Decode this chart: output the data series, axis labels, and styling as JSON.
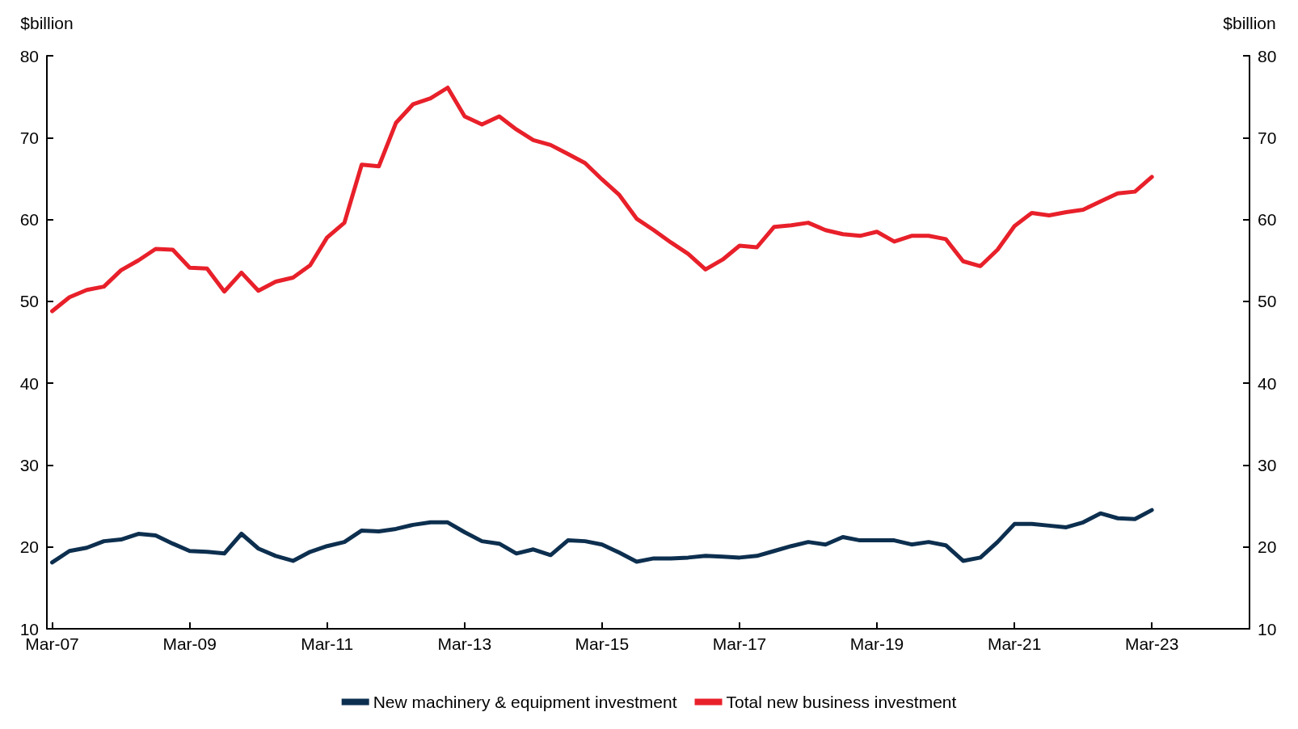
{
  "chart_data": {
    "type": "line",
    "ylabel": "$billion",
    "y2label": "$billion",
    "x": [
      "2007-03",
      "2007-06",
      "2007-09",
      "2007-12",
      "2008-03",
      "2008-06",
      "2008-09",
      "2008-12",
      "2009-03",
      "2009-06",
      "2009-09",
      "2009-12",
      "2010-03",
      "2010-06",
      "2010-09",
      "2010-12",
      "2011-03",
      "2011-06",
      "2011-09",
      "2011-12",
      "2012-03",
      "2012-06",
      "2012-09",
      "2012-12",
      "2013-03",
      "2013-06",
      "2013-09",
      "2013-12",
      "2014-03",
      "2014-06",
      "2014-09",
      "2014-12",
      "2015-03",
      "2015-06",
      "2015-09",
      "2015-12",
      "2016-03",
      "2016-06",
      "2016-09",
      "2016-12",
      "2017-03",
      "2017-06",
      "2017-09",
      "2017-12",
      "2018-03",
      "2018-06",
      "2018-09",
      "2018-12",
      "2019-03",
      "2019-06",
      "2019-09",
      "2019-12",
      "2020-03",
      "2020-06",
      "2020-09",
      "2020-12",
      "2021-03",
      "2021-06",
      "2021-09",
      "2021-12",
      "2022-03",
      "2022-06",
      "2022-09",
      "2022-12",
      "2023-03"
    ],
    "series": [
      {
        "name": "New machinery & equipment investment",
        "color": "#0d2f4f",
        "values": [
          18.1,
          19.5,
          19.9,
          20.7,
          20.9,
          21.6,
          21.4,
          20.4,
          19.5,
          19.4,
          19.2,
          21.6,
          19.8,
          18.9,
          18.3,
          19.4,
          20.1,
          20.6,
          22.0,
          21.9,
          22.2,
          22.7,
          23.0,
          23.0,
          21.8,
          20.7,
          20.4,
          19.2,
          19.7,
          19.0,
          20.8,
          20.7,
          20.3,
          19.3,
          18.2,
          18.6,
          18.6,
          18.7,
          18.9,
          18.8,
          18.7,
          18.9,
          19.5,
          20.1,
          20.6,
          20.3,
          21.2,
          20.8,
          20.8,
          20.8,
          20.3,
          20.6,
          20.2,
          18.3,
          18.7,
          20.6,
          22.8,
          22.8,
          22.6,
          22.4,
          23.0,
          24.1,
          23.5,
          23.4,
          24.5
        ]
      },
      {
        "name": "Total new business investment",
        "color": "#e8202a",
        "values": [
          48.8,
          50.5,
          51.4,
          51.8,
          53.8,
          55.0,
          56.4,
          56.3,
          54.1,
          54.0,
          51.2,
          53.5,
          51.3,
          52.4,
          52.9,
          54.4,
          57.8,
          59.6,
          66.7,
          66.5,
          71.8,
          74.1,
          74.8,
          76.1,
          72.6,
          71.6,
          72.6,
          71.0,
          69.7,
          69.1,
          68.0,
          66.9,
          64.9,
          63.0,
          60.1,
          58.7,
          57.2,
          55.8,
          53.9,
          55.1,
          56.8,
          56.6,
          59.1,
          59.3,
          59.6,
          58.7,
          58.2,
          58.0,
          58.5,
          57.3,
          58.0,
          58.0,
          57.6,
          54.9,
          54.3,
          56.3,
          59.2,
          60.8,
          60.5,
          60.9,
          61.2,
          62.2,
          63.2,
          63.4,
          65.2
        ]
      }
    ],
    "xlim": [
      "2007-02",
      "2024-08"
    ],
    "xticks": [
      {
        "value": "2007-03",
        "label": "Mar-07"
      },
      {
        "value": "2009-03",
        "label": "Mar-09"
      },
      {
        "value": "2011-03",
        "label": "Mar-11"
      },
      {
        "value": "2013-03",
        "label": "Mar-13"
      },
      {
        "value": "2015-03",
        "label": "Mar-15"
      },
      {
        "value": "2017-03",
        "label": "Mar-17"
      },
      {
        "value": "2019-03",
        "label": "Mar-19"
      },
      {
        "value": "2021-03",
        "label": "Mar-21"
      },
      {
        "value": "2023-03",
        "label": "Mar-23"
      }
    ],
    "ylim": [
      10,
      80
    ],
    "yticks": [
      10,
      20,
      30,
      40,
      50,
      60,
      70,
      80
    ],
    "y2lim": [
      10,
      80
    ],
    "y2ticks": [
      10,
      20,
      30,
      40,
      50,
      60,
      70,
      80
    ],
    "grid": false,
    "legend": "bottom",
    "marker": "none",
    "line_style": "solid"
  }
}
